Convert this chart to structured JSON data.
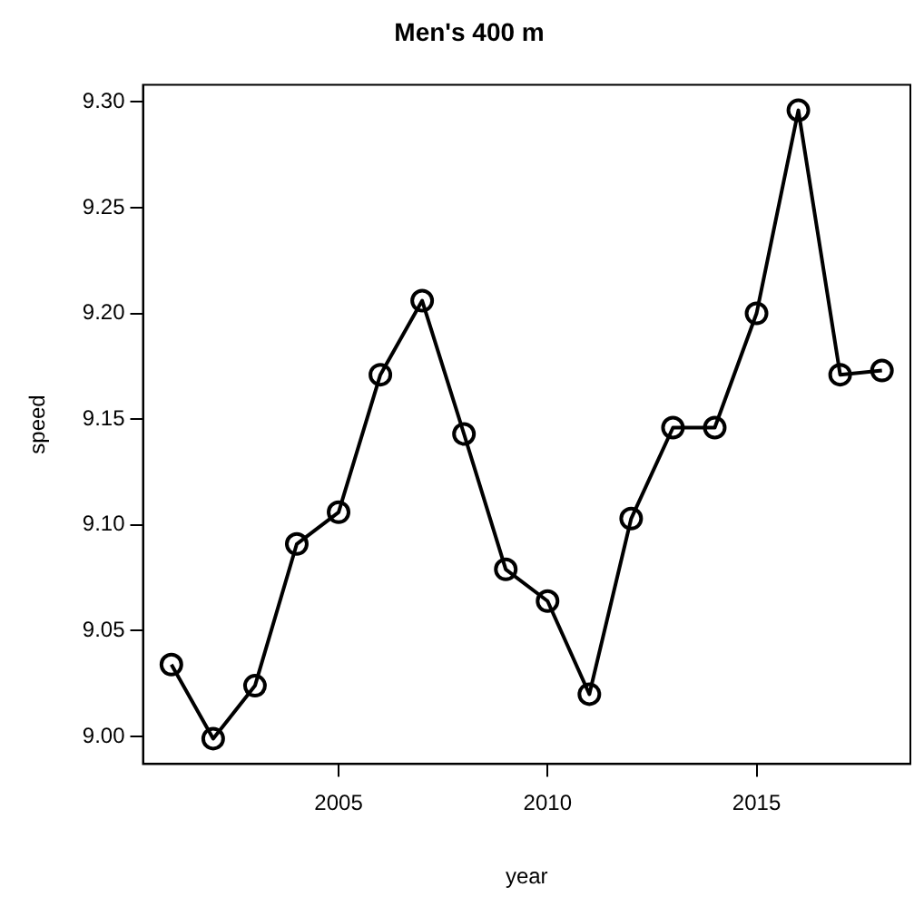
{
  "chart_data": {
    "type": "line",
    "title": "Men's 400 m",
    "xlabel": "year",
    "ylabel": "speed",
    "x": [
      2001,
      2002,
      2003,
      2004,
      2005,
      2006,
      2007,
      2008,
      2009,
      2010,
      2011,
      2012,
      2013,
      2014,
      2015,
      2016,
      2017,
      2018
    ],
    "series": [
      {
        "color": "#000000",
        "values": [
          9.034,
          8.999,
          9.024,
          9.091,
          9.106,
          9.171,
          9.206,
          9.143,
          9.079,
          9.064,
          9.02,
          9.103,
          9.146,
          9.146,
          9.2,
          9.296,
          9.171,
          9.173
        ]
      }
    ],
    "xlim": [
      2000.32,
      2018.68
    ],
    "xticks": [
      2005,
      2010,
      2015
    ],
    "ylim": [
      8.987,
      9.308
    ],
    "yticks": [
      {
        "value": 9.0,
        "label": "9.00"
      },
      {
        "value": 9.05,
        "label": "9.05"
      },
      {
        "value": 9.1,
        "label": "9.10"
      },
      {
        "value": 9.15,
        "label": "9.15"
      },
      {
        "value": 9.2,
        "label": "9.20"
      },
      {
        "value": 9.25,
        "label": "9.25"
      },
      {
        "value": 9.3,
        "label": "9.30"
      }
    ],
    "grid": false,
    "legend": false,
    "marker": "circle",
    "line_style": "solid"
  }
}
